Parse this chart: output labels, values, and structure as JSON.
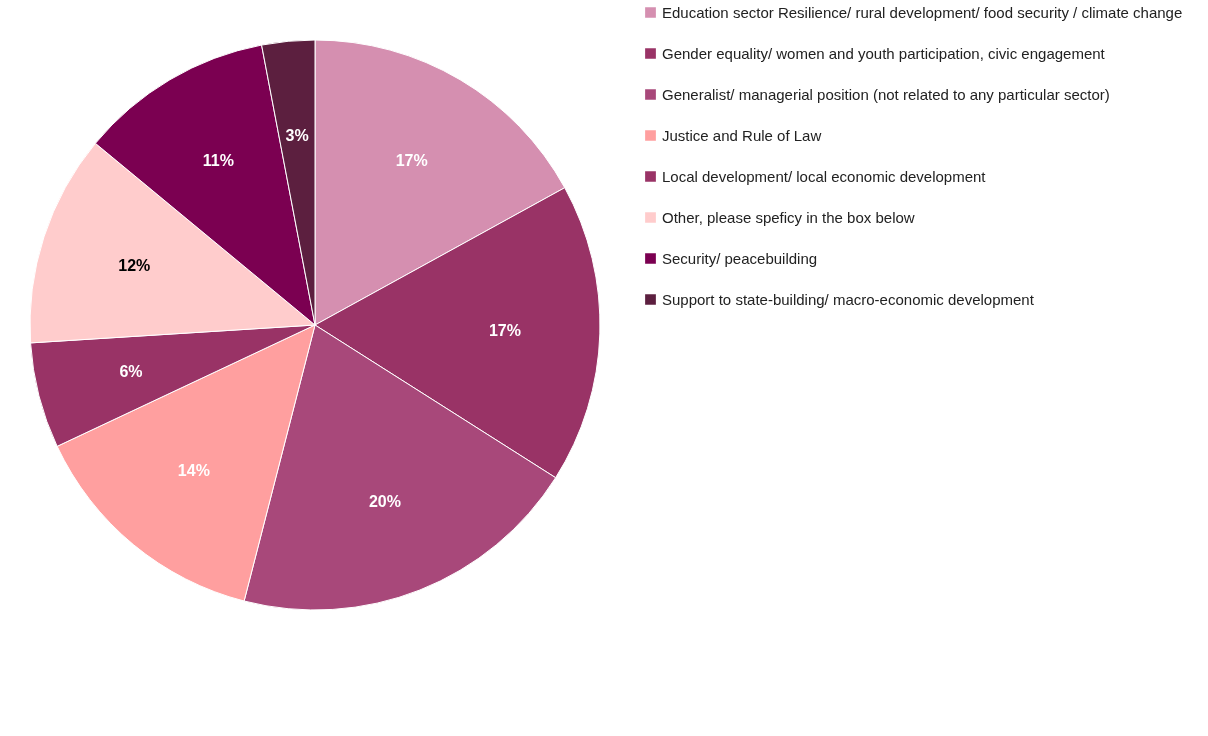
{
  "chart_data": {
    "type": "pie",
    "categories": [
      "Education sector Resilience/ rural development/ food security / climate change",
      "Gender equality/ women and youth participation, civic engagement",
      "Generalist/ managerial position (not related to any particular sector)",
      "Justice and Rule of Law",
      "Local development/ local economic development",
      "Other, please speficy in the box below",
      "Security/ peacebuilding",
      "Support to state-building/ macro-economic development"
    ],
    "values": [
      17,
      17,
      20,
      14,
      6,
      12,
      11,
      3
    ],
    "value_labels": [
      "17%",
      "17%",
      "20%",
      "14%",
      "6%",
      "12%",
      "11%",
      "3%"
    ],
    "colors": [
      "#d58fb0",
      "#993366",
      "#a8487a",
      "#ff9f9f",
      "#993366",
      "#ffcccc",
      "#7b0051",
      "#5c1f3f"
    ],
    "legend": "right"
  }
}
